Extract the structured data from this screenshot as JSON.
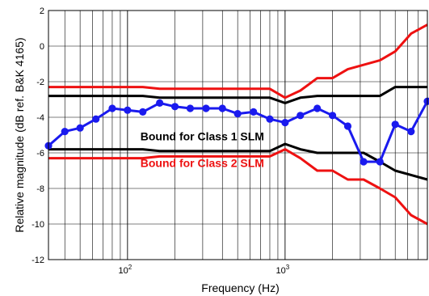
{
  "chart_data": {
    "type": "line",
    "xscale": "log",
    "xlabel": "Frequency (Hz)",
    "ylabel": "Relative magnitude (dB ref. B&K 4165)",
    "xlim": [
      31.5,
      8000
    ],
    "ylim": [
      -12,
      2
    ],
    "grid": true,
    "yticks": [
      -12,
      -10,
      -8,
      -6,
      -4,
      -2,
      0,
      2
    ],
    "ytick_labels": [
      "-12",
      "-10",
      "-8",
      "-6",
      "-4",
      "-2",
      "0",
      "2"
    ],
    "xticks": [
      100,
      1000
    ],
    "xtick_labels": [
      {
        "base": "10",
        "exp": "2"
      },
      {
        "base": "10",
        "exp": "3"
      }
    ],
    "annotations": [
      {
        "text": "Bound for Class 1 SLM",
        "color": "#000000",
        "x": 125,
        "y": -5.2
      },
      {
        "text": "Bound for Class 2 SLM",
        "color": "#ee1111",
        "x": 125,
        "y": -6.7
      }
    ],
    "series": [
      {
        "color": "#ee1111",
        "stroke": 3,
        "markers": false,
        "points": [
          [
            31.5,
            -2.3
          ],
          [
            125,
            -2.3
          ],
          [
            160,
            -2.4
          ],
          [
            800,
            -2.4
          ],
          [
            1000,
            -2.9
          ],
          [
            1250,
            -2.5
          ],
          [
            1600,
            -1.8
          ],
          [
            2000,
            -1.8
          ],
          [
            2500,
            -1.3
          ],
          [
            4000,
            -0.8
          ],
          [
            5000,
            -0.3
          ],
          [
            6300,
            0.7
          ],
          [
            8000,
            1.2
          ]
        ]
      },
      {
        "color": "#000000",
        "stroke": 3,
        "markers": false,
        "points": [
          [
            31.5,
            -2.8
          ],
          [
            125,
            -2.8
          ],
          [
            160,
            -2.9
          ],
          [
            800,
            -2.9
          ],
          [
            1000,
            -3.2
          ],
          [
            1250,
            -2.9
          ],
          [
            1600,
            -2.8
          ],
          [
            4000,
            -2.8
          ],
          [
            5000,
            -2.3
          ],
          [
            8000,
            -2.3
          ]
        ]
      },
      {
        "color": "#000000",
        "stroke": 3,
        "markers": false,
        "points": [
          [
            31.5,
            -5.8
          ],
          [
            125,
            -5.8
          ],
          [
            160,
            -5.9
          ],
          [
            800,
            -5.9
          ],
          [
            1000,
            -5.5
          ],
          [
            1250,
            -5.8
          ],
          [
            1600,
            -6.0
          ],
          [
            3150,
            -6.0
          ],
          [
            4000,
            -6.5
          ],
          [
            5000,
            -7.0
          ],
          [
            8000,
            -7.5
          ]
        ]
      },
      {
        "color": "#ee1111",
        "stroke": 3,
        "markers": false,
        "points": [
          [
            31.5,
            -6.3
          ],
          [
            125,
            -6.3
          ],
          [
            160,
            -6.2
          ],
          [
            800,
            -6.2
          ],
          [
            1000,
            -5.8
          ],
          [
            1250,
            -6.3
          ],
          [
            1600,
            -7.0
          ],
          [
            2000,
            -7.0
          ],
          [
            2500,
            -7.5
          ],
          [
            3150,
            -7.5
          ],
          [
            4000,
            -8.0
          ],
          [
            5000,
            -8.5
          ],
          [
            6300,
            -9.5
          ],
          [
            8000,
            -10.0
          ]
        ]
      },
      {
        "color": "#1a1aee",
        "stroke": 3,
        "markers": true,
        "points": [
          [
            31.5,
            -5.6
          ],
          [
            40,
            -4.8
          ],
          [
            50,
            -4.6
          ],
          [
            63,
            -4.1
          ],
          [
            80,
            -3.5
          ],
          [
            100,
            -3.6
          ],
          [
            125,
            -3.7
          ],
          [
            160,
            -3.2
          ],
          [
            200,
            -3.4
          ],
          [
            250,
            -3.5
          ],
          [
            315,
            -3.5
          ],
          [
            400,
            -3.5
          ],
          [
            500,
            -3.8
          ],
          [
            630,
            -3.7
          ],
          [
            800,
            -4.1
          ],
          [
            1000,
            -4.3
          ],
          [
            1250,
            -3.9
          ],
          [
            1600,
            -3.5
          ],
          [
            2000,
            -3.9
          ],
          [
            2500,
            -4.5
          ],
          [
            3150,
            -6.5
          ],
          [
            4000,
            -6.5
          ],
          [
            5000,
            -4.4
          ],
          [
            6300,
            -4.8
          ],
          [
            8000,
            -3.1
          ]
        ]
      }
    ]
  }
}
